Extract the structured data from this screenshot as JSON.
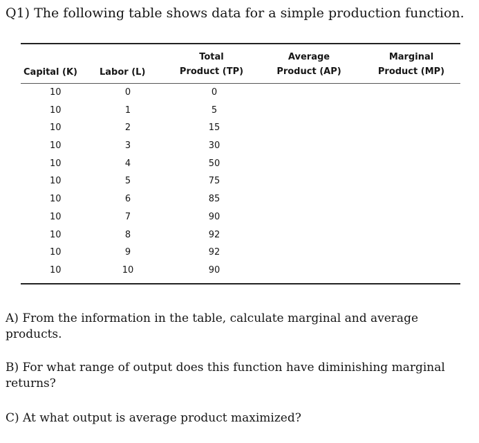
{
  "title": "Q1) The following table shows data for a simple production function.",
  "table": {
    "headers": {
      "capital": "Capital (K)",
      "labor": "Labor (L)",
      "tp_line1": "Total",
      "tp_line2": "Product (TP)",
      "ap_line1": "Average",
      "ap_line2": "Product (AP)",
      "mp_line1": "Marginal",
      "mp_line2": "Product (MP)"
    },
    "rows": [
      {
        "capital": "10",
        "labor": "0",
        "tp": "0"
      },
      {
        "capital": "10",
        "labor": "1",
        "tp": "5"
      },
      {
        "capital": "10",
        "labor": "2",
        "tp": "15"
      },
      {
        "capital": "10",
        "labor": "3",
        "tp": "30"
      },
      {
        "capital": "10",
        "labor": "4",
        "tp": "50"
      },
      {
        "capital": "10",
        "labor": "5",
        "tp": "75"
      },
      {
        "capital": "10",
        "labor": "6",
        "tp": "85"
      },
      {
        "capital": "10",
        "labor": "7",
        "tp": "90"
      },
      {
        "capital": "10",
        "labor": "8",
        "tp": "92"
      },
      {
        "capital": "10",
        "labor": "9",
        "tp": "92"
      },
      {
        "capital": "10",
        "labor": "10",
        "tp": "90"
      }
    ]
  },
  "questions": {
    "a": "A) From the information in the table, calculate marginal and average products.",
    "b": "B) For what range of output does this function have diminishing marginal returns?",
    "c": "C) At what output is average product maximized?"
  }
}
